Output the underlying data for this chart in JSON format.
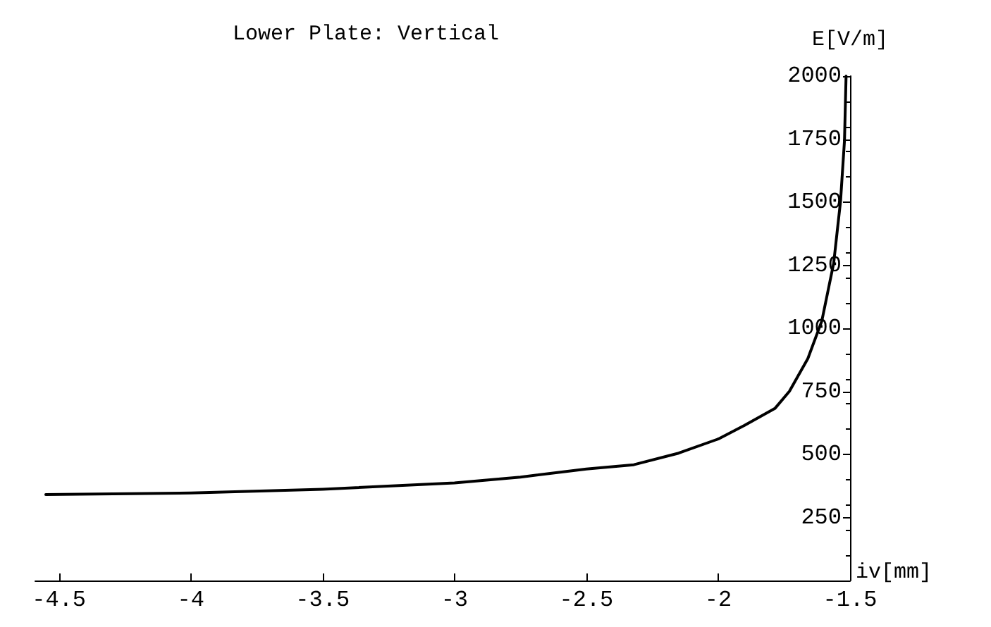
{
  "chart_data": {
    "type": "line",
    "title": "Lower Plate: Vertical",
    "xlabel": "iv[mm]",
    "ylabel": "E[V/m]",
    "x": [
      -4.55,
      -4.0,
      -3.5,
      -3.0,
      -2.75,
      -2.5,
      -2.32,
      -2.15,
      -2.0,
      -1.9,
      -1.785,
      -1.73,
      -1.66,
      -1.607,
      -1.562,
      -1.536,
      -1.521,
      -1.515
    ],
    "series": [
      {
        "color": "#000000",
        "values": [
          341,
          347,
          362,
          387,
          410,
          442,
          459,
          505,
          561,
          615,
          682,
          750,
          880,
          1029,
          1258,
          1504,
          1745,
          2000
        ]
      }
    ],
    "xlim": [
      -4.59,
      -1.5
    ],
    "xticks": [
      -4.5,
      -4,
      -3.5,
      -3,
      -2.5,
      -2,
      -1.5
    ],
    "ylim": [
      0,
      2000
    ],
    "yticks": [
      250,
      500,
      750,
      1000,
      1250,
      1500,
      1750,
      2000
    ],
    "grid": false,
    "marker": "none",
    "line_style": "solid"
  }
}
